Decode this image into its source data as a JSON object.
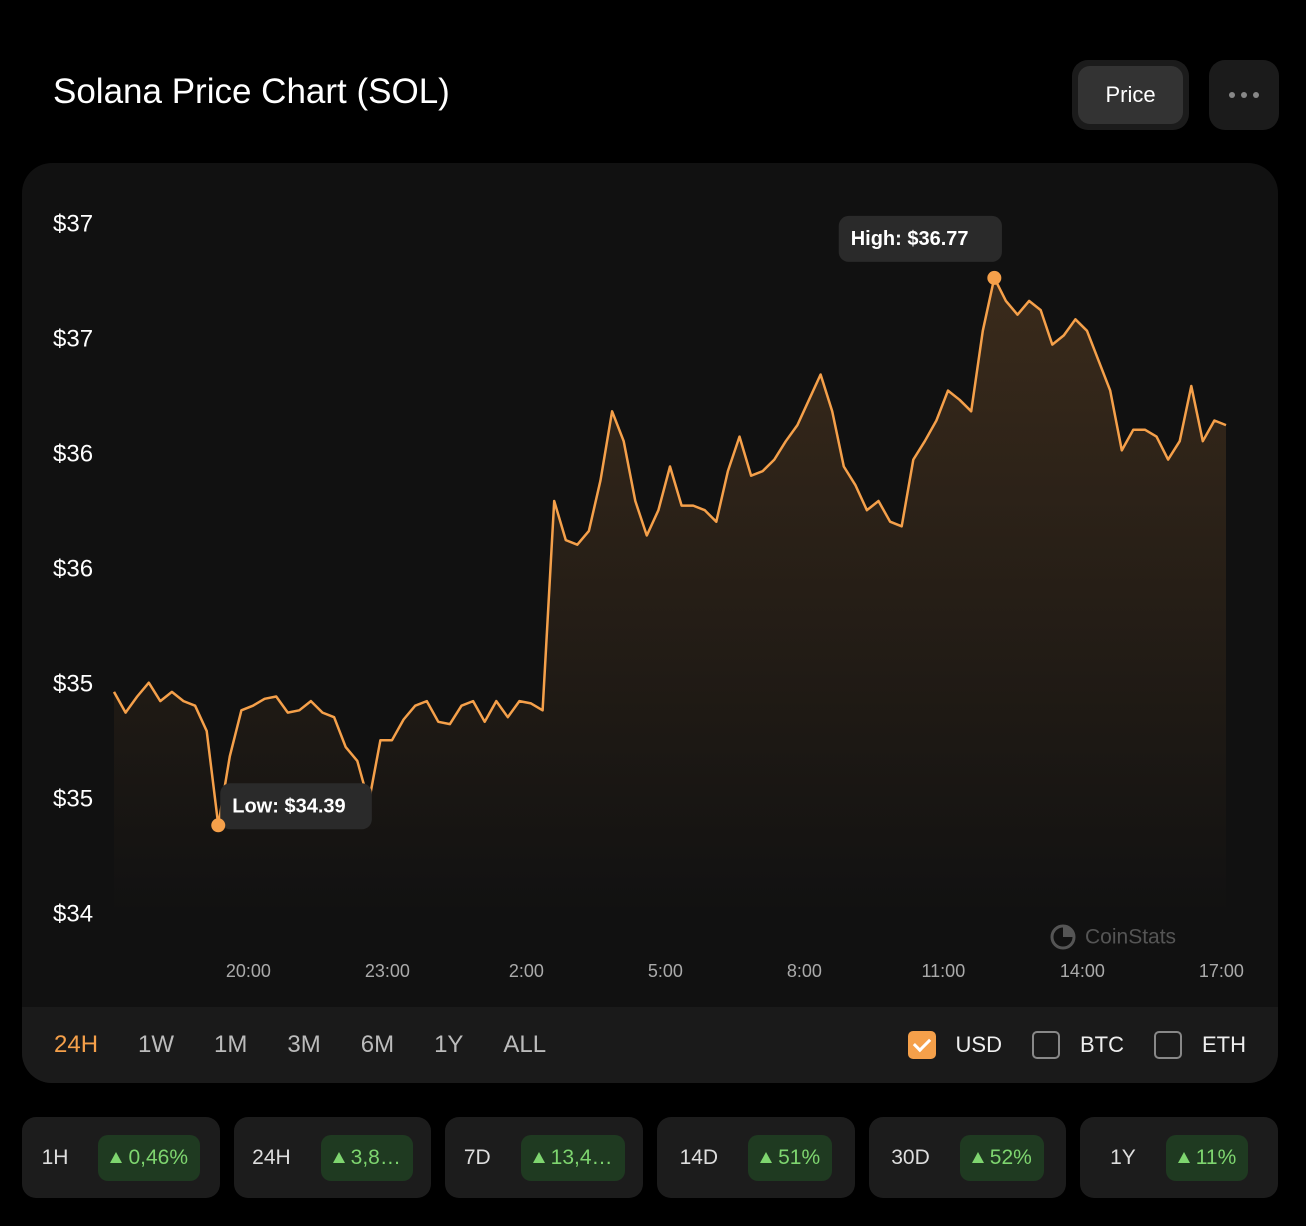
{
  "header": {
    "title": "Solana Price Chart (SOL)",
    "button": "Price"
  },
  "chart_data": {
    "type": "line",
    "color": "#f5a04a",
    "grid": false,
    "x": [
      17.1,
      17.35,
      17.6,
      17.85,
      18.1,
      18.35,
      18.6,
      18.85,
      19.1,
      19.35,
      19.6,
      19.85,
      20.1,
      20.35,
      20.6,
      20.85,
      21.1,
      21.35,
      21.6,
      21.85,
      22.1,
      22.35,
      22.6,
      22.85,
      23.1,
      23.35,
      23.6,
      23.85,
      24.1,
      24.35,
      24.6,
      24.85,
      25.1,
      25.35,
      25.6,
      25.85,
      26.1,
      26.35,
      26.6,
      26.85,
      27.1,
      27.35,
      27.6,
      27.85,
      28.1,
      28.35,
      28.6,
      28.85,
      29.1,
      29.35,
      29.6,
      29.85,
      30.1,
      30.35,
      30.6,
      30.85,
      31.1,
      31.35,
      31.6,
      31.85,
      32.1,
      32.35,
      32.6,
      32.85,
      33.1,
      33.35,
      33.6,
      33.85,
      34.1,
      34.35,
      34.6,
      34.85,
      35.1,
      35.35,
      35.6,
      35.85,
      36.1,
      36.35,
      36.6,
      36.85,
      37.1,
      37.35,
      37.6,
      37.85,
      38.1,
      38.35,
      38.6,
      38.85,
      39.1,
      39.35,
      39.6,
      39.85,
      40.1,
      40.35,
      40.6,
      40.85,
      41.1
    ],
    "values": [
      34.97,
      34.88,
      34.95,
      35.01,
      34.93,
      34.97,
      34.93,
      34.91,
      34.8,
      34.39,
      34.69,
      34.89,
      34.91,
      34.94,
      34.95,
      34.88,
      34.89,
      34.93,
      34.88,
      34.86,
      34.73,
      34.67,
      34.49,
      34.76,
      34.76,
      34.85,
      34.91,
      34.93,
      34.84,
      34.83,
      34.91,
      34.93,
      34.84,
      34.93,
      34.86,
      34.93,
      34.92,
      34.89,
      35.8,
      35.63,
      35.61,
      35.67,
      35.89,
      36.19,
      36.06,
      35.8,
      35.65,
      35.76,
      35.95,
      35.78,
      35.78,
      35.76,
      35.71,
      35.93,
      36.08,
      35.91,
      35.93,
      35.98,
      36.06,
      36.13,
      36.24,
      36.35,
      36.19,
      35.95,
      35.87,
      35.76,
      35.8,
      35.71,
      35.69,
      35.98,
      36.06,
      36.15,
      36.28,
      36.24,
      36.19,
      36.54,
      36.77,
      36.67,
      36.61,
      36.67,
      36.63,
      36.48,
      36.52,
      36.59,
      36.54,
      36.41,
      36.28,
      36.02,
      36.11,
      36.11,
      36.08,
      35.98,
      36.06,
      36.3,
      36.06,
      36.15,
      36.13
    ],
    "xlim": [
      17.1,
      41.1
    ],
    "xticks": [
      {
        "value": 20,
        "label": "20:00"
      },
      {
        "value": 23,
        "label": "23:00"
      },
      {
        "value": 26,
        "label": "2:00"
      },
      {
        "value": 29,
        "label": "5:00"
      },
      {
        "value": 32,
        "label": "8:00"
      },
      {
        "value": 35,
        "label": "11:00"
      },
      {
        "value": 38,
        "label": "14:00"
      },
      {
        "value": 41,
        "label": "17:00"
      }
    ],
    "ylim": [
      34,
      37
    ],
    "yticks": [
      {
        "value": 37,
        "label": "$37"
      },
      {
        "value": 36.5,
        "label": "$37"
      },
      {
        "value": 36,
        "label": "$36"
      },
      {
        "value": 35.5,
        "label": "$36"
      },
      {
        "value": 35,
        "label": "$35"
      },
      {
        "value": 34.5,
        "label": "$35"
      },
      {
        "value": 34,
        "label": "$34"
      }
    ],
    "annotations": [
      {
        "text": "Low: $34.39",
        "x": 19.35,
        "y": 34.39,
        "position": "right"
      },
      {
        "text": "High: $36.77",
        "x": 36.1,
        "y": 36.77,
        "position": "above"
      }
    ],
    "watermark": "CoinStats"
  },
  "ranges": {
    "items": [
      "24H",
      "1W",
      "1M",
      "3M",
      "6M",
      "1Y",
      "ALL"
    ],
    "active": 0
  },
  "currencies": [
    {
      "label": "USD",
      "checked": true
    },
    {
      "label": "BTC",
      "checked": false
    },
    {
      "label": "ETH",
      "checked": false
    }
  ],
  "changes": [
    {
      "period": "1H",
      "change": "0,46%"
    },
    {
      "period": "24H",
      "change": "3,8…"
    },
    {
      "period": "7D",
      "change": "13,4…"
    },
    {
      "period": "14D",
      "change": "51%"
    },
    {
      "period": "30D",
      "change": "52%"
    },
    {
      "period": "1Y",
      "change": "11%"
    }
  ]
}
